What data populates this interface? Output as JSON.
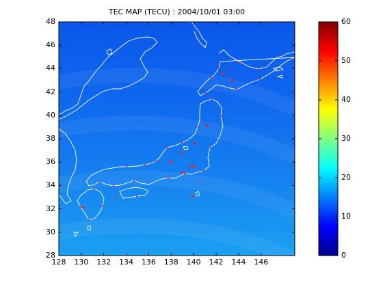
{
  "title": "TEC MAP (TECU) : 2004/10/01 03:00",
  "chart_data": {
    "type": "heatmap",
    "title": "TEC MAP (TECU) : 2004/10/01 03:00",
    "xlabel": "",
    "ylabel": "",
    "xlim": [
      128,
      149
    ],
    "ylim": [
      28,
      48
    ],
    "x_ticks": [
      "128",
      "130",
      "132",
      "134",
      "136",
      "138",
      "140",
      "142",
      "144",
      "146"
    ],
    "y_ticks": [
      "28",
      "30",
      "32",
      "34",
      "36",
      "38",
      "40",
      "42",
      "44",
      "46",
      "48"
    ],
    "colorbar": {
      "colormap": "jet",
      "range": [
        0,
        60
      ],
      "ticks": [
        "0",
        "10",
        "20",
        "30",
        "40",
        "50",
        "60"
      ]
    },
    "tec_field_estimate": [
      {
        "lat": 28,
        "tec": 17
      },
      {
        "lat": 32,
        "tec": 16
      },
      {
        "lat": 36,
        "tec": 14
      },
      {
        "lat": 40,
        "tec": 12
      },
      {
        "lat": 44,
        "tec": 11
      },
      {
        "lat": 48,
        "tec": 10
      }
    ],
    "stations": [
      {
        "lon": 142.6,
        "lat": 43.6
      },
      {
        "lon": 143.4,
        "lat": 43.0
      },
      {
        "lon": 141.2,
        "lat": 39.1
      },
      {
        "lon": 140.1,
        "lat": 37.6
      },
      {
        "lon": 138.9,
        "lat": 36.8
      },
      {
        "lon": 138.0,
        "lat": 36.0
      },
      {
        "lon": 139.8,
        "lat": 35.7
      },
      {
        "lon": 140.1,
        "lat": 35.6
      },
      {
        "lon": 139.0,
        "lat": 35.1
      },
      {
        "lon": 139.9,
        "lat": 33.1
      },
      {
        "lon": 130.2,
        "lat": 32.1
      }
    ]
  }
}
